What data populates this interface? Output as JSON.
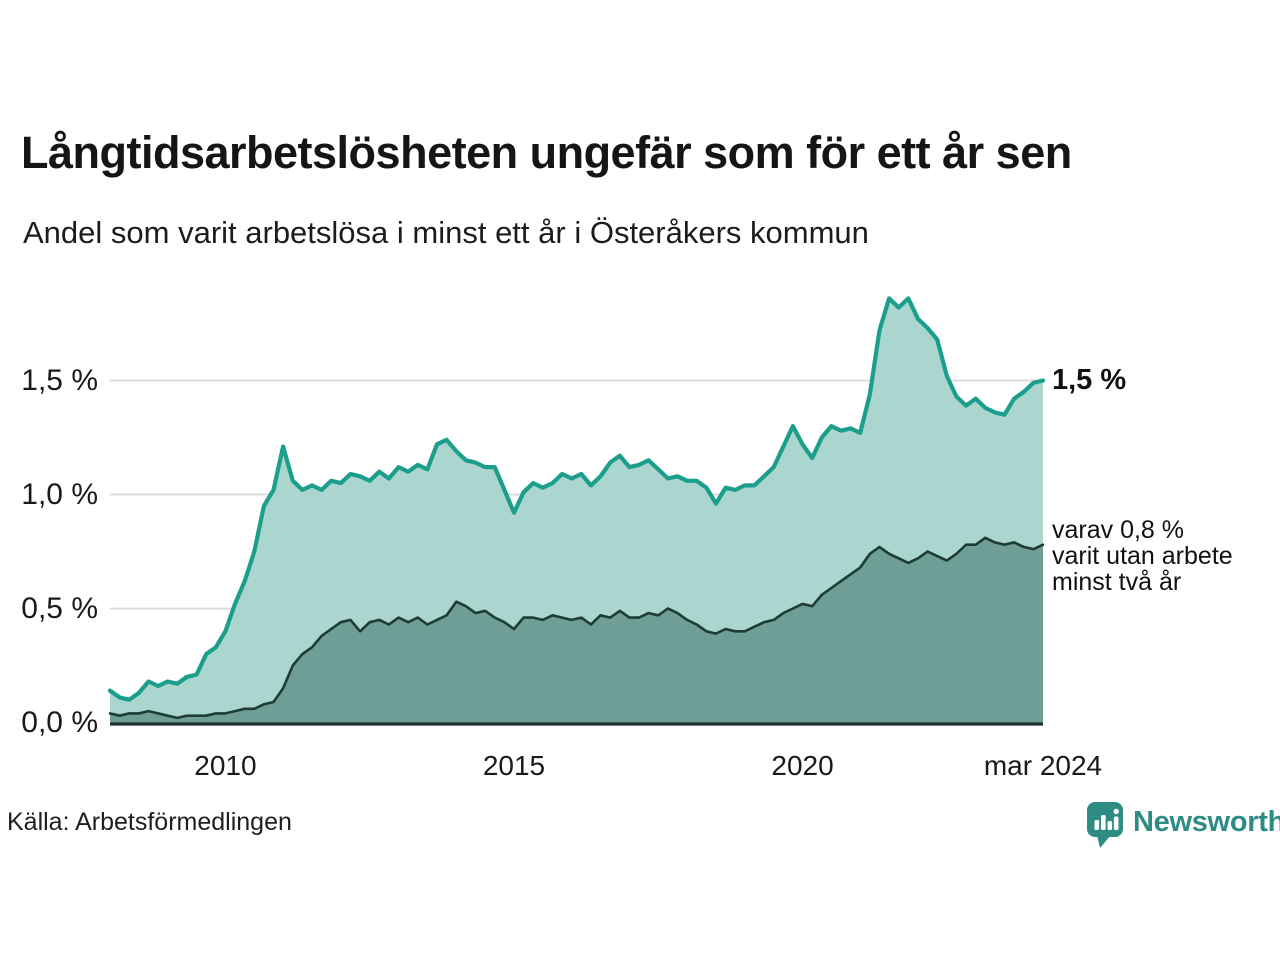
{
  "header": {
    "title": "Långtidsarbetslösheten ungefär som för ett år sen",
    "subtitle": "Andel som varit arbetslösa i minst ett år i Österåkers kommun"
  },
  "chart_data": {
    "type": "area",
    "title": "Långtidsarbetslösheten ungefär som för ett år sen",
    "subtitle": "Andel som varit arbetslösa i minst ett år i Österåkers kommun",
    "unit": "%",
    "x_unit": "decimal_year_monthly",
    "x_start": 2008.0,
    "x_step": 0.1666667,
    "xlim": [
      2008.0,
      2024.1666667
    ],
    "ylim": [
      0,
      1.9
    ],
    "grid": "horizontal",
    "legend_position": "end-of-line-labels",
    "colors": {
      "series1_line": "#1b9e8c",
      "series1_fill": "#abd6d0",
      "series2_line": "#1e3c37",
      "series2_fill": "#6f9e96",
      "gridline": "#d8d8d8",
      "baseline": "#20312e"
    },
    "series": [
      {
        "name": "Andel arbetslösa minst ett år",
        "end_value": "1,5 %",
        "line_color": "#1b9e8c",
        "fill_color": "#abd6d0",
        "values": [
          0.14,
          0.11,
          0.1,
          0.13,
          0.18,
          0.16,
          0.18,
          0.17,
          0.2,
          0.21,
          0.3,
          0.33,
          0.4,
          0.52,
          0.62,
          0.75,
          0.95,
          1.02,
          1.21,
          1.06,
          1.02,
          1.04,
          1.02,
          1.06,
          1.05,
          1.09,
          1.08,
          1.06,
          1.1,
          1.07,
          1.12,
          1.1,
          1.13,
          1.11,
          1.22,
          1.24,
          1.19,
          1.15,
          1.14,
          1.12,
          1.12,
          1.02,
          0.92,
          1.01,
          1.05,
          1.03,
          1.05,
          1.09,
          1.07,
          1.09,
          1.04,
          1.08,
          1.14,
          1.17,
          1.12,
          1.13,
          1.15,
          1.11,
          1.07,
          1.08,
          1.06,
          1.06,
          1.03,
          0.96,
          1.03,
          1.02,
          1.04,
          1.04,
          1.08,
          1.12,
          1.21,
          1.3,
          1.22,
          1.16,
          1.25,
          1.3,
          1.28,
          1.29,
          1.27,
          1.44,
          1.72,
          1.86,
          1.82,
          1.86,
          1.77,
          1.73,
          1.68,
          1.52,
          1.43,
          1.39,
          1.42,
          1.38,
          1.36,
          1.35,
          1.42,
          1.45,
          1.49,
          1.5
        ]
      },
      {
        "name": "varav utan arbete minst två år",
        "end_value": "0,8 %",
        "line_color": "#1e3c37",
        "fill_color": "#6f9e96",
        "values": [
          0.04,
          0.03,
          0.04,
          0.04,
          0.05,
          0.04,
          0.03,
          0.02,
          0.03,
          0.03,
          0.03,
          0.04,
          0.04,
          0.05,
          0.06,
          0.06,
          0.08,
          0.09,
          0.15,
          0.25,
          0.3,
          0.33,
          0.38,
          0.41,
          0.44,
          0.45,
          0.4,
          0.44,
          0.45,
          0.43,
          0.46,
          0.44,
          0.46,
          0.43,
          0.45,
          0.47,
          0.53,
          0.51,
          0.48,
          0.49,
          0.46,
          0.44,
          0.41,
          0.46,
          0.46,
          0.45,
          0.47,
          0.46,
          0.45,
          0.46,
          0.43,
          0.47,
          0.46,
          0.49,
          0.46,
          0.46,
          0.48,
          0.47,
          0.5,
          0.48,
          0.45,
          0.43,
          0.4,
          0.39,
          0.41,
          0.4,
          0.4,
          0.42,
          0.44,
          0.45,
          0.48,
          0.5,
          0.52,
          0.51,
          0.56,
          0.59,
          0.62,
          0.65,
          0.68,
          0.74,
          0.77,
          0.74,
          0.72,
          0.7,
          0.72,
          0.75,
          0.73,
          0.71,
          0.74,
          0.78,
          0.78,
          0.81,
          0.79,
          0.78,
          0.79,
          0.77,
          0.76,
          0.78
        ]
      }
    ],
    "y_ticks": [
      {
        "value": 0.0,
        "label": "0,0 %"
      },
      {
        "value": 0.5,
        "label": "0,5 %"
      },
      {
        "value": 1.0,
        "label": "1,0 %"
      },
      {
        "value": 1.5,
        "label": "1,5 %"
      }
    ],
    "x_ticks": [
      {
        "value": 2010,
        "label": "2010"
      },
      {
        "value": 2015,
        "label": "2015"
      },
      {
        "value": 2020,
        "label": "2020"
      },
      {
        "value": 2024.1666667,
        "label": "mar 2024"
      }
    ],
    "annotations": {
      "series1_end_label": "1,5 %",
      "series2_end_lines": [
        "varav 0,8 %",
        "varit utan arbete",
        "minst två år"
      ]
    }
  },
  "footer": {
    "source": "Källa: Arbetsförmedlingen",
    "logo_text": "Newsworthy",
    "logo_color": "#2f8c85"
  }
}
